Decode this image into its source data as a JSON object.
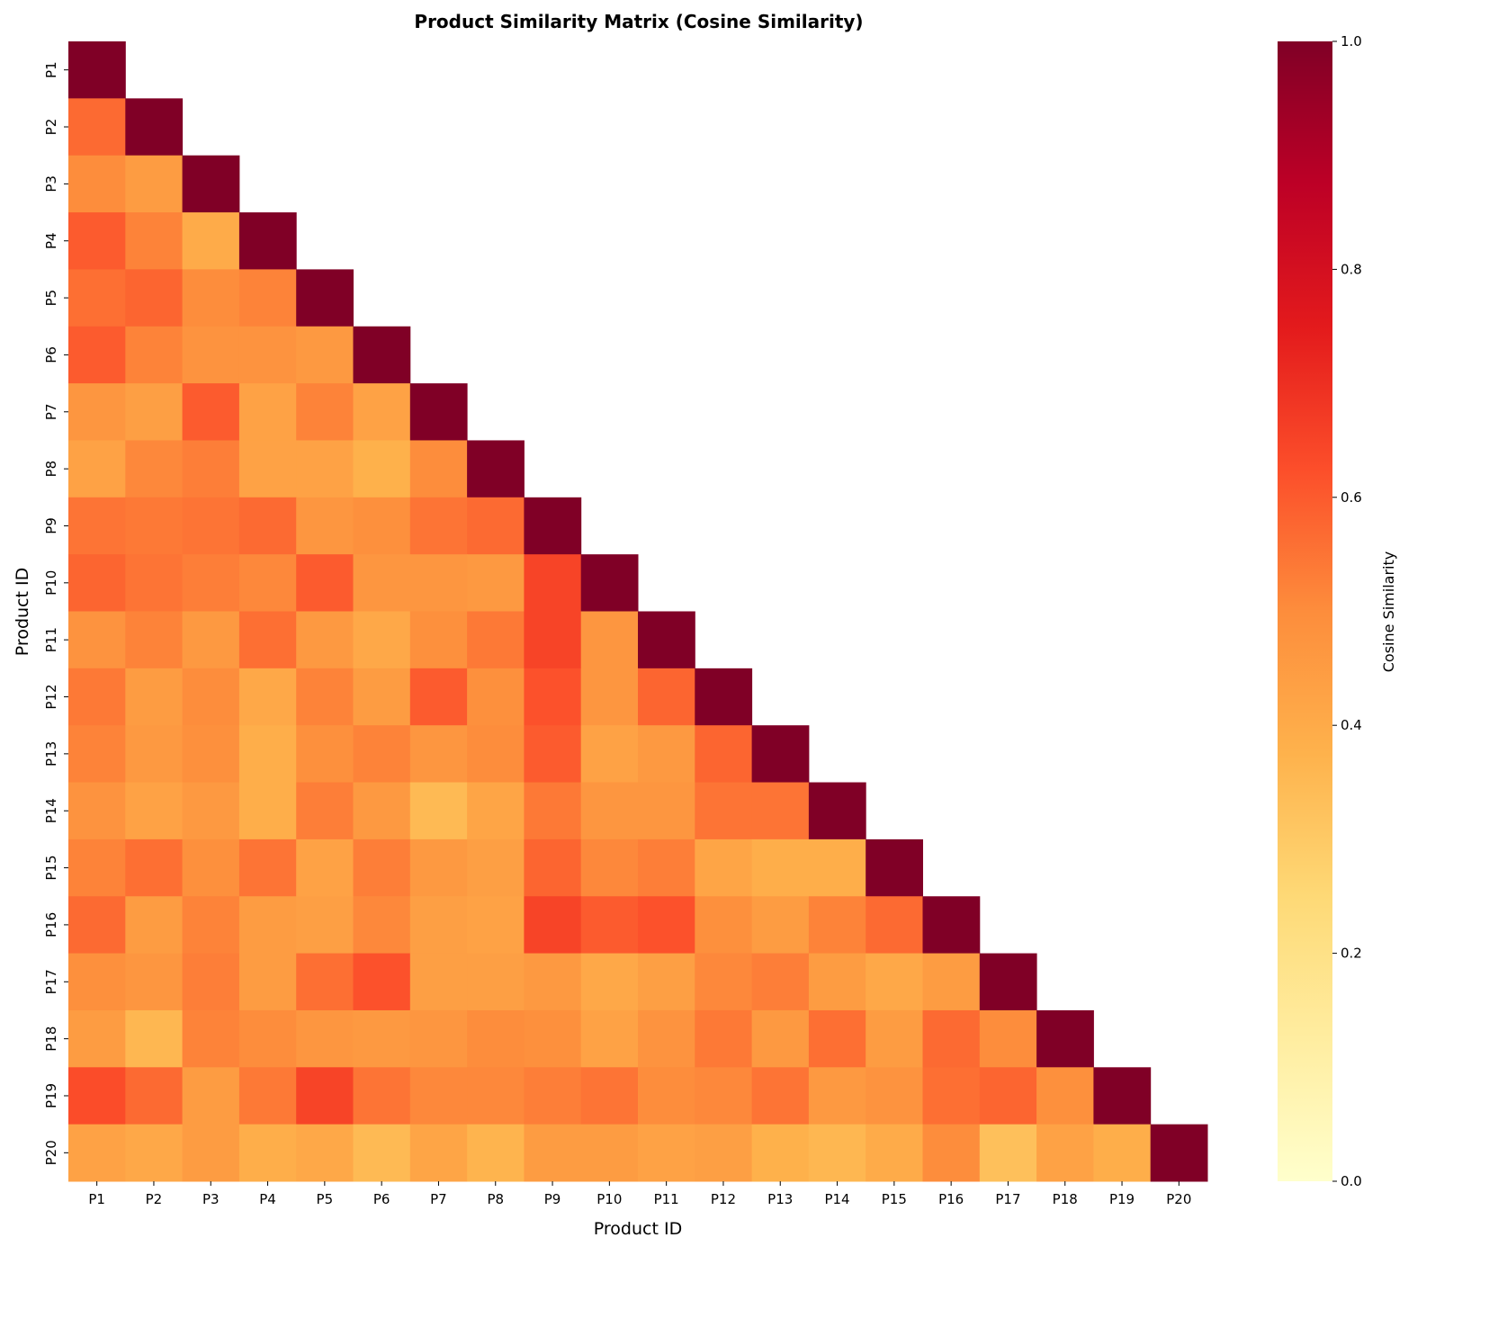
{
  "chart_data": {
    "type": "heatmap",
    "title": "Product Similarity Matrix (Cosine Similarity)",
    "xlabel": "Product ID",
    "ylabel": "Product ID",
    "colorbar_label": "Cosine Similarity",
    "colormap": "YlOrRd",
    "colormap_stops": [
      "#ffffcc",
      "#ffeda0",
      "#fed976",
      "#feb24c",
      "#fd8d3c",
      "#fc4e2a",
      "#e31a1c",
      "#bd0026",
      "#800026"
    ],
    "vlim": [
      0,
      1
    ],
    "colorbar_ticks": [
      "0.0",
      "0.2",
      "0.4",
      "0.6",
      "0.8",
      "1.0"
    ],
    "mask": "upper triangle",
    "categories": [
      "P1",
      "P2",
      "P3",
      "P4",
      "P5",
      "P6",
      "P7",
      "P8",
      "P9",
      "P10",
      "P11",
      "P12",
      "P13",
      "P14",
      "P15",
      "P16",
      "P17",
      "P18",
      "P19",
      "P20"
    ],
    "values": [
      [
        1.0
      ],
      [
        0.57,
        1.0
      ],
      [
        0.5,
        0.45,
        1.0
      ],
      [
        0.6,
        0.52,
        0.4,
        1.0
      ],
      [
        0.56,
        0.58,
        0.5,
        0.52,
        1.0
      ],
      [
        0.6,
        0.52,
        0.48,
        0.48,
        0.46,
        1.0
      ],
      [
        0.47,
        0.44,
        0.6,
        0.43,
        0.52,
        0.43,
        1.0
      ],
      [
        0.43,
        0.51,
        0.53,
        0.43,
        0.43,
        0.38,
        0.5,
        1.0
      ],
      [
        0.55,
        0.54,
        0.55,
        0.57,
        0.47,
        0.49,
        0.55,
        0.57,
        1.0
      ],
      [
        0.58,
        0.55,
        0.53,
        0.51,
        0.6,
        0.47,
        0.47,
        0.46,
        0.65,
        1.0
      ],
      [
        0.48,
        0.52,
        0.46,
        0.56,
        0.46,
        0.41,
        0.49,
        0.54,
        0.65,
        0.47,
        1.0
      ],
      [
        0.54,
        0.45,
        0.5,
        0.41,
        0.52,
        0.45,
        0.6,
        0.49,
        0.62,
        0.47,
        0.58,
        1.0
      ],
      [
        0.52,
        0.46,
        0.49,
        0.39,
        0.49,
        0.52,
        0.47,
        0.5,
        0.6,
        0.43,
        0.46,
        0.58,
        1.0
      ],
      [
        0.48,
        0.43,
        0.46,
        0.39,
        0.53,
        0.46,
        0.35,
        0.42,
        0.54,
        0.47,
        0.47,
        0.55,
        0.55,
        1.0
      ],
      [
        0.52,
        0.56,
        0.49,
        0.55,
        0.43,
        0.53,
        0.46,
        0.44,
        0.58,
        0.51,
        0.53,
        0.42,
        0.39,
        0.39,
        1.0
      ],
      [
        0.57,
        0.45,
        0.52,
        0.45,
        0.44,
        0.51,
        0.44,
        0.43,
        0.65,
        0.6,
        0.62,
        0.49,
        0.45,
        0.52,
        0.57,
        1.0
      ],
      [
        0.49,
        0.47,
        0.53,
        0.45,
        0.56,
        0.62,
        0.44,
        0.44,
        0.46,
        0.41,
        0.44,
        0.51,
        0.53,
        0.45,
        0.41,
        0.45,
        1.0
      ],
      [
        0.45,
        0.36,
        0.52,
        0.5,
        0.47,
        0.46,
        0.47,
        0.5,
        0.49,
        0.43,
        0.48,
        0.54,
        0.46,
        0.56,
        0.45,
        0.57,
        0.5,
        1.0
      ],
      [
        0.63,
        0.57,
        0.45,
        0.54,
        0.65,
        0.55,
        0.51,
        0.51,
        0.53,
        0.55,
        0.5,
        0.51,
        0.55,
        0.46,
        0.48,
        0.56,
        0.58,
        0.49,
        1.0
      ],
      [
        0.43,
        0.41,
        0.45,
        0.39,
        0.41,
        0.35,
        0.42,
        0.37,
        0.45,
        0.45,
        0.43,
        0.44,
        0.38,
        0.36,
        0.4,
        0.5,
        0.33,
        0.43,
        0.39,
        1.0
      ]
    ]
  }
}
